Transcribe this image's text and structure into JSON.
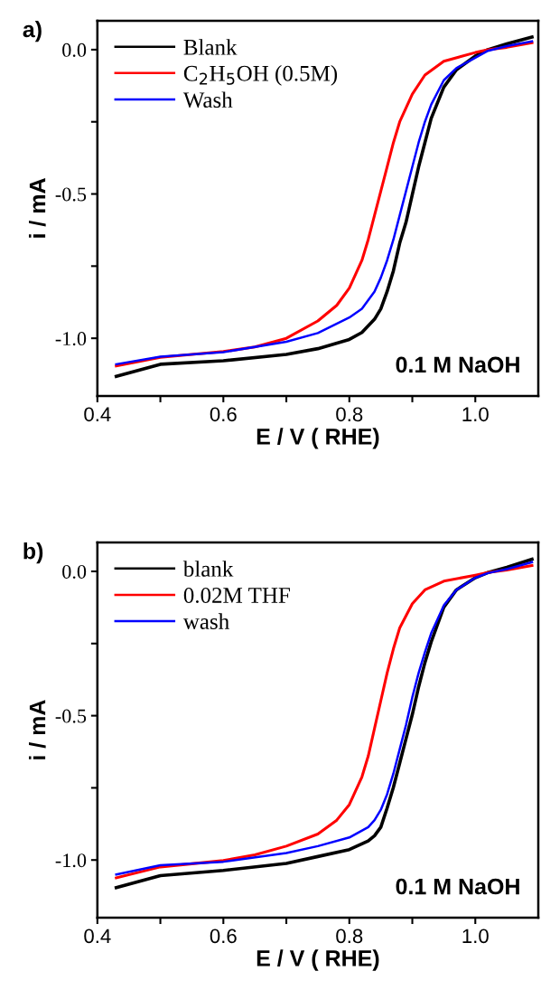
{
  "chart_data": [
    {
      "type": "line",
      "title": "a)",
      "xlabel": "E / V ( RHE)",
      "ylabel": "i / mA",
      "annotations": [
        "0.1 M NaOH"
      ],
      "xlim": [
        0.4,
        1.1
      ],
      "ylim": [
        -1.2,
        0.1
      ],
      "xticks": [
        0.4,
        {
          "value": 0.5,
          "label": null
        },
        0.6,
        {
          "value": 0.7,
          "label": null
        },
        0.8,
        {
          "value": 0.9,
          "label": null
        },
        {
          "value": 1.0,
          "label": "1.0"
        }
      ],
      "yticks": [
        {
          "value": -1.0,
          "label": "-1.0"
        },
        {
          "value": -0.75,
          "label": null
        },
        {
          "value": -0.5,
          "label": "-0.5"
        },
        {
          "value": -0.25,
          "label": null
        },
        {
          "value": 0.0,
          "label": "0.0"
        }
      ],
      "legend": "top left",
      "grid": false,
      "series": [
        {
          "name": "Blank",
          "color": "#000000",
          "x": [
            0.43,
            0.5,
            0.6,
            0.7,
            0.75,
            0.8,
            0.82,
            0.84,
            0.85,
            0.86,
            0.87,
            0.88,
            0.89,
            0.9,
            0.91,
            0.92,
            0.93,
            0.95,
            0.97,
            1.0,
            1.02,
            1.05,
            1.09
          ],
          "values": [
            -1.132,
            -1.09,
            -1.078,
            -1.056,
            -1.036,
            -1.004,
            -0.98,
            -0.934,
            -0.898,
            -0.838,
            -0.766,
            -0.67,
            -0.598,
            -0.502,
            -0.406,
            -0.322,
            -0.238,
            -0.13,
            -0.07,
            -0.022,
            0.0,
            0.02,
            0.044
          ]
        },
        {
          "name": "C$_{2}$H$_{5}$OH (0.5M)",
          "color": "#ff0000",
          "x": [
            0.43,
            0.5,
            0.6,
            0.65,
            0.7,
            0.75,
            0.78,
            0.8,
            0.82,
            0.83,
            0.84,
            0.85,
            0.86,
            0.87,
            0.88,
            0.9,
            0.92,
            0.95,
            1.0,
            1.02,
            1.05,
            1.09
          ],
          "values": [
            -1.096,
            -1.066,
            -1.046,
            -1.03,
            -1.0,
            -0.94,
            -0.886,
            -0.826,
            -0.73,
            -0.658,
            -0.574,
            -0.49,
            -0.406,
            -0.322,
            -0.25,
            -0.154,
            -0.088,
            -0.04,
            -0.01,
            0.0,
            0.008,
            0.024
          ]
        },
        {
          "name": "Wash",
          "color": "#0000ff",
          "x": [
            0.43,
            0.5,
            0.6,
            0.7,
            0.75,
            0.8,
            0.82,
            0.84,
            0.85,
            0.86,
            0.87,
            0.88,
            0.89,
            0.9,
            0.91,
            0.92,
            0.93,
            0.95,
            0.97,
            1.0,
            1.02,
            1.05,
            1.09
          ],
          "values": [
            -1.09,
            -1.064,
            -1.048,
            -1.012,
            -0.982,
            -0.928,
            -0.898,
            -0.838,
            -0.79,
            -0.73,
            -0.658,
            -0.574,
            -0.49,
            -0.406,
            -0.322,
            -0.25,
            -0.19,
            -0.106,
            -0.064,
            -0.028,
            -0.004,
            0.012,
            0.029
          ]
        }
      ]
    },
    {
      "type": "line",
      "title": "b)",
      "xlabel": "E / V ( RHE)",
      "ylabel": "i / mA",
      "annotations": [
        "0.1 M NaOH"
      ],
      "xlim": [
        0.4,
        1.1
      ],
      "ylim": [
        -1.2,
        0.1
      ],
      "xticks": [
        0.4,
        {
          "value": 0.5,
          "label": null
        },
        0.6,
        {
          "value": 0.7,
          "label": null
        },
        0.8,
        {
          "value": 0.9,
          "label": null
        },
        {
          "value": 1.0,
          "label": "1.0"
        }
      ],
      "yticks": [
        {
          "value": -1.0,
          "label": "-1.0"
        },
        {
          "value": -0.75,
          "label": null
        },
        {
          "value": -0.5,
          "label": "-0.5"
        },
        {
          "value": -0.25,
          "label": null
        },
        {
          "value": 0.0,
          "label": "0.0"
        }
      ],
      "legend": "top left",
      "grid": false,
      "series": [
        {
          "name": "blank",
          "color": "#000000",
          "x": [
            0.43,
            0.5,
            0.6,
            0.7,
            0.75,
            0.8,
            0.83,
            0.84,
            0.85,
            0.86,
            0.87,
            0.88,
            0.89,
            0.9,
            0.91,
            0.92,
            0.93,
            0.95,
            0.97,
            1.0,
            1.02,
            1.05,
            1.09
          ],
          "values": [
            -1.096,
            -1.054,
            -1.036,
            -1.012,
            -0.988,
            -0.964,
            -0.934,
            -0.916,
            -0.886,
            -0.82,
            -0.748,
            -0.664,
            -0.58,
            -0.496,
            -0.4,
            -0.316,
            -0.244,
            -0.124,
            -0.064,
            -0.022,
            -0.004,
            0.014,
            0.042
          ]
        },
        {
          "name": "0.02M THF",
          "color": "#ff0000",
          "x": [
            0.43,
            0.5,
            0.6,
            0.65,
            0.7,
            0.75,
            0.78,
            0.8,
            0.82,
            0.83,
            0.84,
            0.85,
            0.86,
            0.87,
            0.88,
            0.9,
            0.92,
            0.95,
            1.0,
            1.02,
            1.05,
            1.09
          ],
          "values": [
            -1.062,
            -1.024,
            -1.002,
            -0.982,
            -0.952,
            -0.91,
            -0.862,
            -0.808,
            -0.712,
            -0.64,
            -0.544,
            -0.448,
            -0.352,
            -0.268,
            -0.196,
            -0.112,
            -0.064,
            -0.034,
            -0.013,
            -0.004,
            0.005,
            0.02
          ]
        },
        {
          "name": "wash",
          "color": "#0000ff",
          "x": [
            0.43,
            0.5,
            0.6,
            0.7,
            0.75,
            0.8,
            0.83,
            0.84,
            0.85,
            0.86,
            0.87,
            0.88,
            0.89,
            0.9,
            0.91,
            0.92,
            0.93,
            0.95,
            0.97,
            1.0,
            1.02,
            1.05,
            1.09
          ],
          "values": [
            -1.05,
            -1.018,
            -1.006,
            -0.976,
            -0.952,
            -0.922,
            -0.886,
            -0.862,
            -0.826,
            -0.772,
            -0.7,
            -0.616,
            -0.532,
            -0.436,
            -0.352,
            -0.28,
            -0.214,
            -0.118,
            -0.064,
            -0.022,
            -0.006,
            0.008,
            0.032
          ]
        }
      ]
    }
  ]
}
